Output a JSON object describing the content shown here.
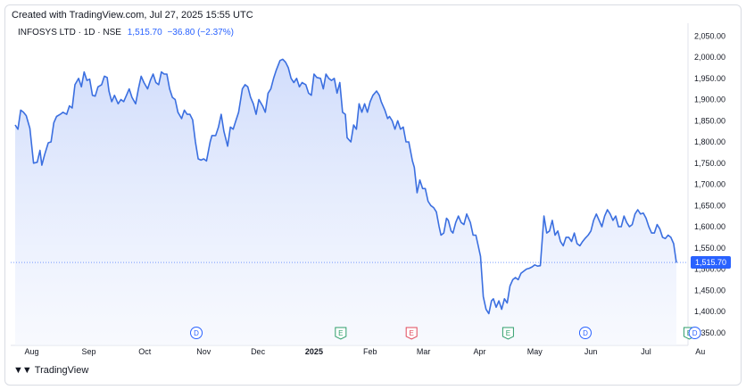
{
  "header": {
    "created_text": "Created with TradingView.com, Jul 27, 2025 15:55 UTC"
  },
  "legend": {
    "symbol": "INFOSYS LTD · 1D · NSE",
    "price": "1,515.70",
    "change": "−36.80 (−2.37%)"
  },
  "footer": {
    "brand": "TradingView"
  },
  "colors": {
    "line": "#3b6fe0",
    "fill_top": "#c9d7fb",
    "fill_bottom": "#f3f6fe",
    "price_tag": "#2962ff",
    "earnings": "#2e9e6b",
    "earnings_red": "#e0485a",
    "dividend": "#2962ff"
  },
  "chart_data": {
    "type": "area",
    "ylim": [
      1320,
      2080
    ],
    "yticks": [
      1350,
      1400,
      1450,
      1500,
      1550,
      1600,
      1650,
      1700,
      1750,
      1800,
      1850,
      1900,
      1950,
      2000,
      2050
    ],
    "ytick_labels": [
      "1,350.00",
      "1,400.00",
      "1,450.00",
      "1,500.00",
      "1,550.00",
      "1,600.00",
      "1,650.00",
      "1,700.00",
      "1,750.00",
      "1,800.00",
      "1,850.00",
      "1,900.00",
      "1,950.00",
      "2,000.00",
      "2,050.00"
    ],
    "last_price": 1515.7,
    "last_price_label": "1,515.70",
    "xticks": [
      {
        "label": "Aug",
        "t": 18
      },
      {
        "label": "Sep",
        "t": 80
      },
      {
        "label": "Oct",
        "t": 141
      },
      {
        "label": "Nov",
        "t": 205
      },
      {
        "label": "Dec",
        "t": 264
      },
      {
        "label": "2025",
        "t": 325
      },
      {
        "label": "Feb",
        "t": 386
      },
      {
        "label": "Mar",
        "t": 444
      },
      {
        "label": "Apr",
        "t": 505
      },
      {
        "label": "May",
        "t": 565
      },
      {
        "label": "Jun",
        "t": 626
      },
      {
        "label": "Jul",
        "t": 686
      },
      {
        "label": "Au",
        "t": 745
      }
    ],
    "events": [
      {
        "kind": "D",
        "t": 197
      },
      {
        "kind": "E",
        "t": 354
      },
      {
        "kind": "E",
        "t": 431,
        "color": "red"
      },
      {
        "kind": "E",
        "t": 536
      },
      {
        "kind": "D",
        "t": 620
      },
      {
        "kind": "E",
        "t": 733
      },
      {
        "kind": "D",
        "t": 739
      }
    ],
    "values": [
      [
        0,
        1840
      ],
      [
        3,
        1830
      ],
      [
        6,
        1875
      ],
      [
        9,
        1870
      ],
      [
        12,
        1862
      ],
      [
        16,
        1832
      ],
      [
        20,
        1750
      ],
      [
        24,
        1752
      ],
      [
        27,
        1780
      ],
      [
        29,
        1745
      ],
      [
        32,
        1770
      ],
      [
        36,
        1798
      ],
      [
        39,
        1800
      ],
      [
        42,
        1845
      ],
      [
        45,
        1860
      ],
      [
        49,
        1865
      ],
      [
        52,
        1870
      ],
      [
        56,
        1865
      ],
      [
        59,
        1885
      ],
      [
        62,
        1880
      ],
      [
        65,
        1935
      ],
      [
        69,
        1950
      ],
      [
        72,
        1930
      ],
      [
        75,
        1965
      ],
      [
        78,
        1945
      ],
      [
        81,
        1948
      ],
      [
        84,
        1910
      ],
      [
        87,
        1908
      ],
      [
        90,
        1930
      ],
      [
        94,
        1935
      ],
      [
        97,
        1955
      ],
      [
        100,
        1952
      ],
      [
        102,
        1920
      ],
      [
        105,
        1895
      ],
      [
        108,
        1910
      ],
      [
        112,
        1890
      ],
      [
        115,
        1900
      ],
      [
        118,
        1895
      ],
      [
        121,
        1910
      ],
      [
        124,
        1925
      ],
      [
        127,
        1905
      ],
      [
        131,
        1890
      ],
      [
        134,
        1925
      ],
      [
        137,
        1955
      ],
      [
        140,
        1940
      ],
      [
        144,
        1925
      ],
      [
        147,
        1945
      ],
      [
        150,
        1960
      ],
      [
        153,
        1940
      ],
      [
        156,
        1935
      ],
      [
        159,
        1965
      ],
      [
        162,
        1960
      ],
      [
        165,
        1960
      ],
      [
        168,
        1925
      ],
      [
        171,
        1905
      ],
      [
        174,
        1900
      ],
      [
        177,
        1870
      ],
      [
        181,
        1855
      ],
      [
        184,
        1875
      ],
      [
        187,
        1865
      ],
      [
        190,
        1865
      ],
      [
        193,
        1852
      ],
      [
        196,
        1800
      ],
      [
        199,
        1760
      ],
      [
        202,
        1757
      ],
      [
        205,
        1760
      ],
      [
        208,
        1755
      ],
      [
        212,
        1800
      ],
      [
        214,
        1815
      ],
      [
        218,
        1815
      ],
      [
        221,
        1835
      ],
      [
        224,
        1865
      ],
      [
        227,
        1825
      ],
      [
        231,
        1790
      ],
      [
        234,
        1835
      ],
      [
        237,
        1830
      ],
      [
        240,
        1850
      ],
      [
        243,
        1870
      ],
      [
        247,
        1925
      ],
      [
        250,
        1935
      ],
      [
        253,
        1930
      ],
      [
        256,
        1905
      ],
      [
        259,
        1890
      ],
      [
        262,
        1865
      ],
      [
        265,
        1900
      ],
      [
        269,
        1885
      ],
      [
        272,
        1870
      ],
      [
        275,
        1915
      ],
      [
        278,
        1925
      ],
      [
        281,
        1950
      ],
      [
        284,
        1970
      ],
      [
        288,
        1992
      ],
      [
        291,
        1995
      ],
      [
        294,
        1988
      ],
      [
        297,
        1975
      ],
      [
        300,
        1950
      ],
      [
        303,
        1940
      ],
      [
        306,
        1950
      ],
      [
        309,
        1930
      ],
      [
        312,
        1940
      ],
      [
        316,
        1935
      ],
      [
        319,
        1915
      ],
      [
        322,
        1910
      ],
      [
        325,
        1960
      ],
      [
        328,
        1952
      ],
      [
        332,
        1950
      ],
      [
        335,
        1925
      ],
      [
        338,
        1960
      ],
      [
        341,
        1950
      ],
      [
        344,
        1945
      ],
      [
        347,
        1950
      ],
      [
        350,
        1915
      ],
      [
        353,
        1940
      ],
      [
        356,
        1870
      ],
      [
        359,
        1865
      ],
      [
        361,
        1810
      ],
      [
        365,
        1800
      ],
      [
        368,
        1840
      ],
      [
        371,
        1830
      ],
      [
        374,
        1890
      ],
      [
        377,
        1870
      ],
      [
        380,
        1890
      ],
      [
        383,
        1870
      ],
      [
        386,
        1895
      ],
      [
        389,
        1910
      ],
      [
        393,
        1920
      ],
      [
        396,
        1910
      ],
      [
        398,
        1895
      ],
      [
        402,
        1875
      ],
      [
        405,
        1855
      ],
      [
        407,
        1860
      ],
      [
        410,
        1850
      ],
      [
        413,
        1830
      ],
      [
        416,
        1850
      ],
      [
        419,
        1830
      ],
      [
        422,
        1835
      ],
      [
        425,
        1800
      ],
      [
        428,
        1800
      ],
      [
        432,
        1755
      ],
      [
        434,
        1740
      ],
      [
        437,
        1680
      ],
      [
        440,
        1710
      ],
      [
        443,
        1690
      ],
      [
        446,
        1690
      ],
      [
        449,
        1660
      ],
      [
        452,
        1650
      ],
      [
        455,
        1645
      ],
      [
        458,
        1635
      ],
      [
        461,
        1600
      ],
      [
        463,
        1580
      ],
      [
        466,
        1585
      ],
      [
        469,
        1620
      ],
      [
        471,
        1615
      ],
      [
        474,
        1590
      ],
      [
        476,
        1585
      ],
      [
        479,
        1610
      ],
      [
        482,
        1625
      ],
      [
        485,
        1610
      ],
      [
        488,
        1605
      ],
      [
        491,
        1630
      ],
      [
        495,
        1610
      ],
      [
        498,
        1580
      ],
      [
        501,
        1580
      ],
      [
        503,
        1560
      ],
      [
        506,
        1530
      ],
      [
        509,
        1435
      ],
      [
        512,
        1405
      ],
      [
        515,
        1395
      ],
      [
        518,
        1425
      ],
      [
        520,
        1430
      ],
      [
        523,
        1410
      ],
      [
        526,
        1425
      ],
      [
        529,
        1405
      ],
      [
        532,
        1430
      ],
      [
        535,
        1420
      ],
      [
        538,
        1460
      ],
      [
        541,
        1475
      ],
      [
        544,
        1480
      ],
      [
        547,
        1475
      ],
      [
        550,
        1490
      ],
      [
        553,
        1495
      ],
      [
        556,
        1500
      ],
      [
        559,
        1502
      ],
      [
        562,
        1505
      ],
      [
        565,
        1510
      ],
      [
        568,
        1507
      ],
      [
        571,
        1508
      ],
      [
        575,
        1625
      ],
      [
        578,
        1585
      ],
      [
        581,
        1590
      ],
      [
        584,
        1615
      ],
      [
        587,
        1580
      ],
      [
        590,
        1590
      ],
      [
        593,
        1565
      ],
      [
        596,
        1555
      ],
      [
        599,
        1575
      ],
      [
        602,
        1575
      ],
      [
        605,
        1565
      ],
      [
        608,
        1585
      ],
      [
        611,
        1560
      ],
      [
        614,
        1555
      ],
      [
        617,
        1565
      ],
      [
        620,
        1573
      ],
      [
        623,
        1580
      ],
      [
        626,
        1590
      ],
      [
        629,
        1615
      ],
      [
        632,
        1630
      ],
      [
        635,
        1615
      ],
      [
        638,
        1600
      ],
      [
        641,
        1625
      ],
      [
        644,
        1640
      ],
      [
        647,
        1630
      ],
      [
        650,
        1615
      ],
      [
        653,
        1625
      ],
      [
        656,
        1600
      ],
      [
        659,
        1600
      ],
      [
        662,
        1625
      ],
      [
        665,
        1610
      ],
      [
        668,
        1600
      ],
      [
        671,
        1605
      ],
      [
        674,
        1630
      ],
      [
        677,
        1640
      ],
      [
        680,
        1630
      ],
      [
        683,
        1632
      ],
      [
        686,
        1620
      ],
      [
        689,
        1600
      ],
      [
        692,
        1585
      ],
      [
        695,
        1585
      ],
      [
        698,
        1605
      ],
      [
        701,
        1595
      ],
      [
        704,
        1575
      ],
      [
        707,
        1572
      ],
      [
        710,
        1580
      ],
      [
        713,
        1575
      ],
      [
        716,
        1560
      ],
      [
        719,
        1515
      ]
    ]
  }
}
